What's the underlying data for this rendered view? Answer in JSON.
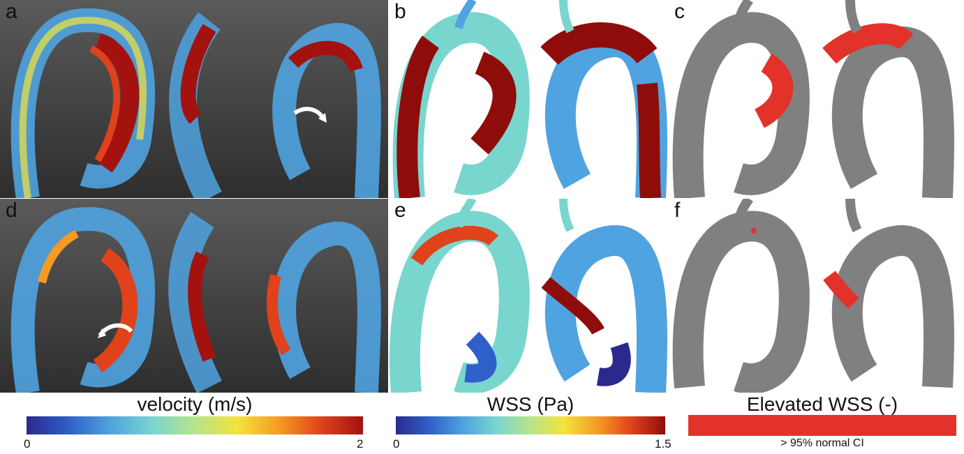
{
  "panels": {
    "a": "a",
    "b": "b",
    "c": "c",
    "d": "d",
    "e": "e",
    "f": "f"
  },
  "colorbars": {
    "velocity": {
      "title": "velocity (m/s)",
      "min": "0",
      "max": "2"
    },
    "wss": {
      "title": "WSS (Pa)",
      "min": "0",
      "max": "1.5"
    },
    "elevated": {
      "title": "Elevated WSS (-)",
      "note": "> 95% normal CI"
    }
  },
  "colors": {
    "velocity_ramp": [
      "#2b2a8c",
      "#2f5fc8",
      "#4fa3e0",
      "#79d6cf",
      "#b7e48a",
      "#f3e43a",
      "#f59b23",
      "#e0421b",
      "#a3120f"
    ],
    "wss_ramp": [
      "#2b2a8c",
      "#2f5fc8",
      "#4fa3e0",
      "#79d6cf",
      "#b7e48a",
      "#f3e43a",
      "#f59b23",
      "#e0421b",
      "#8e0d0b"
    ],
    "elevated": "#e2322a",
    "aorta_gray": "#808080",
    "flow_background": "#4a4a4a"
  }
}
